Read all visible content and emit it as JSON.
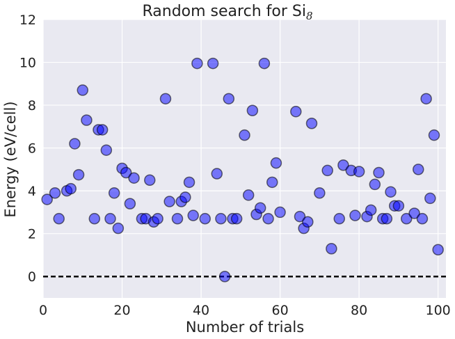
{
  "chart_data": {
    "type": "scatter",
    "title": "Random search for Si",
    "title_subscript": "8",
    "xlabel": "Number of trials",
    "ylabel": "Energy (eV/cell)",
    "xlim": [
      0,
      102
    ],
    "ylim": [
      -1,
      12
    ],
    "xticks": [
      0,
      20,
      40,
      60,
      80,
      100
    ],
    "yticks": [
      0,
      2,
      4,
      6,
      8,
      10,
      12
    ],
    "grid": true,
    "background_color": "#e9e9f1",
    "grid_color": "#ffffff",
    "reference_line": {
      "y": 0,
      "style": "dashed",
      "color": "#000000"
    },
    "marker_color": "#0000ff",
    "points": [
      {
        "x": 1,
        "y": 3.6
      },
      {
        "x": 3,
        "y": 3.9
      },
      {
        "x": 4,
        "y": 2.7
      },
      {
        "x": 6,
        "y": 4.0
      },
      {
        "x": 7,
        "y": 4.1
      },
      {
        "x": 8,
        "y": 6.2
      },
      {
        "x": 9,
        "y": 4.75
      },
      {
        "x": 10,
        "y": 8.7
      },
      {
        "x": 11,
        "y": 7.3
      },
      {
        "x": 13,
        "y": 2.7
      },
      {
        "x": 14,
        "y": 6.85
      },
      {
        "x": 15,
        "y": 6.85
      },
      {
        "x": 16,
        "y": 5.9
      },
      {
        "x": 17,
        "y": 2.7
      },
      {
        "x": 18,
        "y": 3.9
      },
      {
        "x": 19,
        "y": 2.25
      },
      {
        "x": 20,
        "y": 5.05
      },
      {
        "x": 21,
        "y": 4.85
      },
      {
        "x": 22,
        "y": 3.4
      },
      {
        "x": 23,
        "y": 4.6
      },
      {
        "x": 25,
        "y": 2.7
      },
      {
        "x": 26,
        "y": 2.7
      },
      {
        "x": 27,
        "y": 4.5
      },
      {
        "x": 28,
        "y": 2.55
      },
      {
        "x": 29,
        "y": 2.7
      },
      {
        "x": 31,
        "y": 8.3
      },
      {
        "x": 32,
        "y": 3.5
      },
      {
        "x": 34,
        "y": 2.7
      },
      {
        "x": 35,
        "y": 3.5
      },
      {
        "x": 36,
        "y": 3.7
      },
      {
        "x": 37,
        "y": 4.4
      },
      {
        "x": 38,
        "y": 2.85
      },
      {
        "x": 39,
        "y": 9.95
      },
      {
        "x": 41,
        "y": 2.7
      },
      {
        "x": 43,
        "y": 9.95
      },
      {
        "x": 44,
        "y": 4.8
      },
      {
        "x": 45,
        "y": 2.7
      },
      {
        "x": 46,
        "y": 0.0
      },
      {
        "x": 47,
        "y": 8.3
      },
      {
        "x": 48,
        "y": 2.7
      },
      {
        "x": 49,
        "y": 2.7
      },
      {
        "x": 51,
        "y": 6.6
      },
      {
        "x": 52,
        "y": 3.8
      },
      {
        "x": 53,
        "y": 7.75
      },
      {
        "x": 54,
        "y": 2.9
      },
      {
        "x": 55,
        "y": 3.2
      },
      {
        "x": 56,
        "y": 9.95
      },
      {
        "x": 57,
        "y": 2.7
      },
      {
        "x": 58,
        "y": 4.4
      },
      {
        "x": 59,
        "y": 5.3
      },
      {
        "x": 60,
        "y": 3.0
      },
      {
        "x": 64,
        "y": 7.7
      },
      {
        "x": 65,
        "y": 2.8
      },
      {
        "x": 66,
        "y": 2.25
      },
      {
        "x": 67,
        "y": 2.55
      },
      {
        "x": 68,
        "y": 7.15
      },
      {
        "x": 70,
        "y": 3.9
      },
      {
        "x": 72,
        "y": 4.95
      },
      {
        "x": 73,
        "y": 1.3
      },
      {
        "x": 75,
        "y": 2.7
      },
      {
        "x": 76,
        "y": 5.2
      },
      {
        "x": 78,
        "y": 4.95
      },
      {
        "x": 79,
        "y": 2.85
      },
      {
        "x": 80,
        "y": 4.9
      },
      {
        "x": 82,
        "y": 2.8
      },
      {
        "x": 83,
        "y": 3.1
      },
      {
        "x": 84,
        "y": 4.3
      },
      {
        "x": 85,
        "y": 4.85
      },
      {
        "x": 86,
        "y": 2.7
      },
      {
        "x": 87,
        "y": 2.7
      },
      {
        "x": 88,
        "y": 3.95
      },
      {
        "x": 89,
        "y": 3.3
      },
      {
        "x": 90,
        "y": 3.3
      },
      {
        "x": 92,
        "y": 2.7
      },
      {
        "x": 94,
        "y": 2.95
      },
      {
        "x": 95,
        "y": 5.0
      },
      {
        "x": 96,
        "y": 2.7
      },
      {
        "x": 97,
        "y": 8.3
      },
      {
        "x": 98,
        "y": 3.65
      },
      {
        "x": 99,
        "y": 6.6
      },
      {
        "x": 100,
        "y": 1.25
      }
    ]
  }
}
